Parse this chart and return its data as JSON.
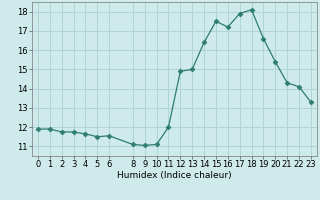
{
  "x": [
    0,
    1,
    2,
    3,
    4,
    5,
    6,
    8,
    9,
    10,
    11,
    12,
    13,
    14,
    15,
    16,
    17,
    18,
    19,
    20,
    21,
    22,
    23
  ],
  "y": [
    11.9,
    11.9,
    11.75,
    11.75,
    11.65,
    11.5,
    11.55,
    11.1,
    11.05,
    11.1,
    12.0,
    14.9,
    15.0,
    16.4,
    17.5,
    17.2,
    17.9,
    18.1,
    16.6,
    15.4,
    14.3,
    14.1,
    13.3
  ],
  "line_color": "#2e7d6e",
  "marker": "D",
  "marker_size": 2.5,
  "bg_color": "#ceeaea",
  "grid_color": "#aed4d4",
  "xlabel": "Humidex (Indice chaleur)",
  "xlim": [
    -0.5,
    23.5
  ],
  "ylim": [
    10.5,
    18.5
  ],
  "yticks": [
    11,
    12,
    13,
    14,
    15,
    16,
    17,
    18
  ],
  "xticks": [
    0,
    1,
    2,
    3,
    4,
    5,
    6,
    8,
    9,
    10,
    11,
    12,
    13,
    14,
    15,
    16,
    17,
    18,
    19,
    20,
    21,
    22,
    23
  ],
  "label_fontsize": 6.5,
  "tick_fontsize": 6
}
